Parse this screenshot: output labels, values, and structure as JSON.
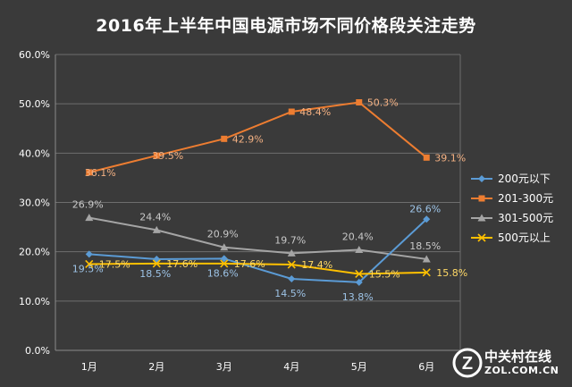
{
  "chart_data": {
    "type": "line",
    "title": "2016年上半年中国电源市场不同价格段关注走势",
    "xlabel": "",
    "ylabel": "",
    "categories": [
      "1月",
      "2月",
      "3月",
      "4月",
      "5月",
      "6月"
    ],
    "ylim": [
      0,
      60
    ],
    "yticks": [
      "0.0%",
      "10.0%",
      "20.0%",
      "30.0%",
      "40.0%",
      "50.0%",
      "60.0%"
    ],
    "grid": true,
    "legend_position": "right",
    "series": [
      {
        "name": "200元以下",
        "values": [
          19.5,
          18.5,
          18.6,
          14.5,
          13.8,
          26.6
        ],
        "labels": [
          "19.5%",
          "18.5%",
          "18.6%",
          "14.5%",
          "13.8%",
          "26.6%"
        ],
        "color": "#5b9bd5",
        "marker": "diamond"
      },
      {
        "name": "201-300元",
        "values": [
          36.1,
          39.5,
          42.9,
          48.4,
          50.3,
          39.1
        ],
        "labels": [
          "36.1%",
          "39.5%",
          "42.9%",
          "48.4%",
          "50.3%",
          "39.1%"
        ],
        "color": "#ed7d31",
        "marker": "square"
      },
      {
        "name": "301-500元",
        "values": [
          26.9,
          24.4,
          20.9,
          19.7,
          20.4,
          18.5
        ],
        "labels": [
          "26.9%",
          "24.4%",
          "20.9%",
          "19.7%",
          "20.4%",
          "18.5%"
        ],
        "color": "#a5a5a5",
        "marker": "triangle"
      },
      {
        "name": "500元以上",
        "values": [
          17.5,
          17.6,
          17.6,
          17.4,
          15.5,
          15.8
        ],
        "labels": [
          "17.5%",
          "17.6%",
          "17.6%",
          "17.4%",
          "15.5%",
          "15.8%"
        ],
        "color": "#ffc000",
        "marker": "x"
      }
    ]
  },
  "watermark": {
    "line1": "中关村在线",
    "line2": "ZOL.COM.CN",
    "logo": "Z"
  }
}
